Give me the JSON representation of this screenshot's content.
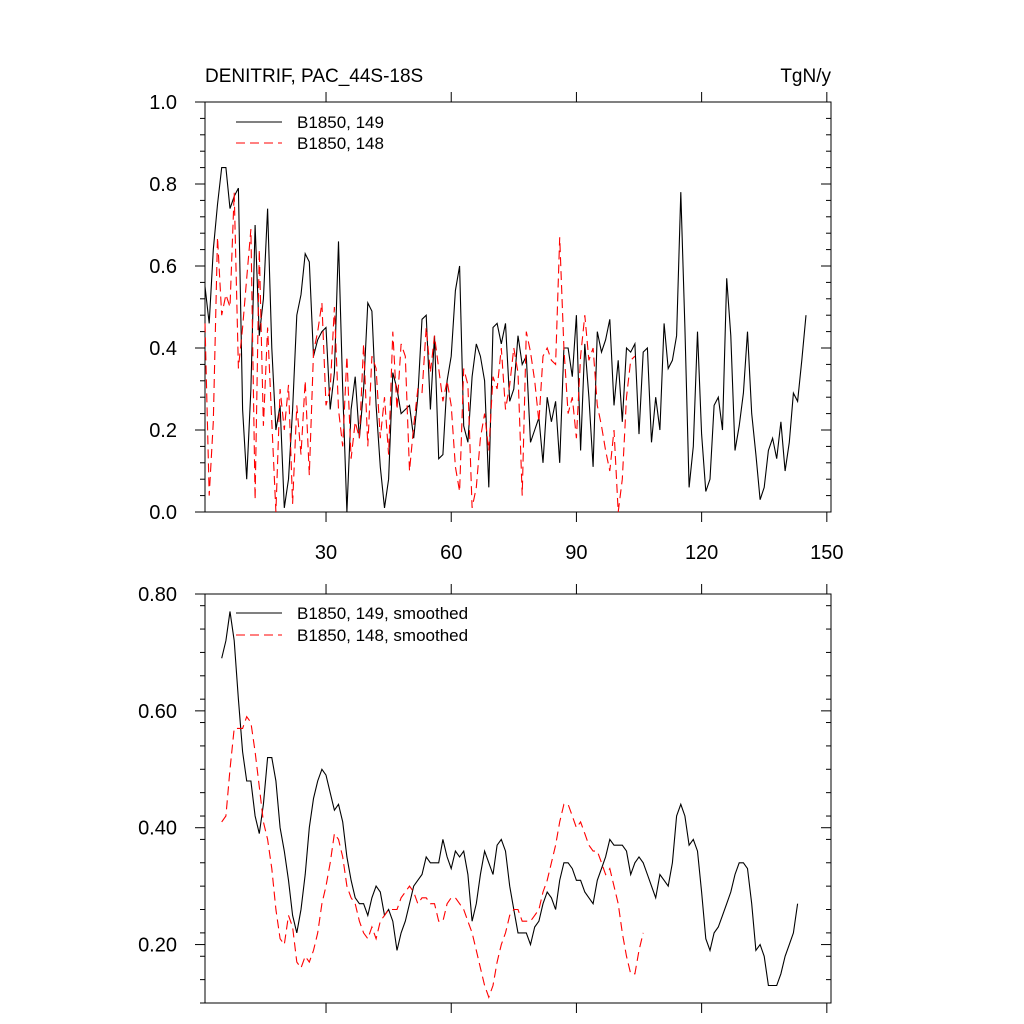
{
  "chart_data": [
    {
      "type": "line",
      "title": "DENITRIF, PAC_44S-18S",
      "units": "TgN/y",
      "xlim": [
        1,
        151
      ],
      "ylim": [
        0,
        1.0
      ],
      "xticks": [
        30,
        60,
        90,
        120,
        150
      ],
      "xtick_labels": [
        "30",
        "60",
        "90",
        "120",
        "150"
      ],
      "yticks": [
        0,
        0.2,
        0.4,
        0.6,
        0.8,
        1.0
      ],
      "ytick_labels": [
        "0.0",
        "0.2",
        "0.4",
        "0.6",
        "0.8",
        "1.0"
      ],
      "grid": false,
      "legend_position": "top-left",
      "series": [
        {
          "name": "B1850, 149",
          "color": "#000000",
          "dash": "solid",
          "x_start": 1,
          "values": [
            0.55,
            0.46,
            0.64,
            0.75,
            0.84,
            0.84,
            0.74,
            0.77,
            0.79,
            0.25,
            0.08,
            0.3,
            0.7,
            0.43,
            0.52,
            0.74,
            0.4,
            0.2,
            0.26,
            0.01,
            0.08,
            0.25,
            0.48,
            0.53,
            0.63,
            0.61,
            0.38,
            0.42,
            0.44,
            0.45,
            0.25,
            0.34,
            0.66,
            0.3,
            0.0,
            0.25,
            0.33,
            0.18,
            0.3,
            0.51,
            0.49,
            0.26,
            0.11,
            0.01,
            0.08,
            0.34,
            0.3,
            0.24,
            0.25,
            0.26,
            0.18,
            0.28,
            0.47,
            0.48,
            0.25,
            0.43,
            0.13,
            0.14,
            0.32,
            0.38,
            0.54,
            0.6,
            0.21,
            0.17,
            0.33,
            0.41,
            0.38,
            0.32,
            0.06,
            0.45,
            0.46,
            0.41,
            0.46,
            0.27,
            0.3,
            0.43,
            0.36,
            0.38,
            0.17,
            0.2,
            0.23,
            0.12,
            0.28,
            0.22,
            0.27,
            0.12,
            0.4,
            0.4,
            0.33,
            0.48,
            0.15,
            0.41,
            0.28,
            0.11,
            0.44,
            0.39,
            0.42,
            0.47,
            0.26,
            0.37,
            0.22,
            0.4,
            0.39,
            0.41,
            0.19,
            0.39,
            0.4,
            0.17,
            0.28,
            0.2,
            0.46,
            0.35,
            0.37,
            0.43,
            0.78,
            0.45,
            0.06,
            0.16,
            0.44,
            0.19,
            0.05,
            0.08,
            0.26,
            0.28,
            0.2,
            0.57,
            0.43,
            0.15,
            0.21,
            0.29,
            0.44,
            0.24,
            0.14,
            0.03,
            0.06,
            0.15,
            0.18,
            0.13,
            0.22,
            0.1,
            0.17,
            0.29,
            0.27,
            0.37,
            0.48
          ]
        },
        {
          "name": "B1850, 148",
          "color": "#ff0000",
          "dash": "dashed",
          "x_start": 1,
          "values": [
            0.46,
            0.04,
            0.22,
            0.67,
            0.48,
            0.53,
            0.5,
            0.78,
            0.35,
            0.45,
            0.57,
            0.69,
            0.03,
            0.64,
            0.21,
            0.45,
            0.22,
            0.0,
            0.3,
            0.2,
            0.31,
            0.02,
            0.26,
            0.14,
            0.32,
            0.09,
            0.39,
            0.44,
            0.51,
            0.26,
            0.3,
            0.5,
            0.25,
            0.16,
            0.38,
            0.13,
            0.22,
            0.18,
            0.41,
            0.16,
            0.38,
            0.35,
            0.18,
            0.28,
            0.14,
            0.44,
            0.25,
            0.41,
            0.38,
            0.1,
            0.21,
            0.3,
            0.29,
            0.45,
            0.34,
            0.43,
            0.35,
            0.27,
            0.32,
            0.26,
            0.11,
            0.05,
            0.35,
            0.31,
            0.01,
            0.06,
            0.18,
            0.24,
            0.15,
            0.33,
            0.3,
            0.4,
            0.25,
            0.31,
            0.4,
            0.34,
            0.04,
            0.44,
            0.39,
            0.32,
            0.22,
            0.38,
            0.4,
            0.37,
            0.36,
            0.67,
            0.4,
            0.24,
            0.28,
            0.18,
            0.38,
            0.48,
            0.37,
            0.4,
            0.26,
            0.21,
            0.15,
            0.1,
            0.2,
            0.0,
            0.08,
            0.28,
            0.37,
            0.38
          ]
        }
      ]
    },
    {
      "type": "line",
      "xlim": [
        1,
        151
      ],
      "ylim": [
        0.1,
        0.8
      ],
      "xticks": [
        30,
        60,
        90,
        120,
        150
      ],
      "yticks": [
        0.2,
        0.4,
        0.6,
        0.8
      ],
      "ytick_labels": [
        "0.20",
        "0.40",
        "0.60",
        "0.80"
      ],
      "grid": false,
      "legend_position": "top-left",
      "series": [
        {
          "name": "B1850, 149, smoothed",
          "color": "#000000",
          "dash": "solid",
          "x_start": 5,
          "values": [
            0.69,
            0.72,
            0.77,
            0.72,
            0.62,
            0.53,
            0.48,
            0.48,
            0.42,
            0.39,
            0.44,
            0.52,
            0.52,
            0.48,
            0.4,
            0.36,
            0.31,
            0.25,
            0.22,
            0.26,
            0.32,
            0.4,
            0.45,
            0.48,
            0.5,
            0.49,
            0.46,
            0.43,
            0.44,
            0.41,
            0.35,
            0.31,
            0.28,
            0.27,
            0.27,
            0.25,
            0.28,
            0.3,
            0.29,
            0.25,
            0.26,
            0.24,
            0.19,
            0.22,
            0.24,
            0.27,
            0.3,
            0.31,
            0.32,
            0.35,
            0.34,
            0.34,
            0.34,
            0.38,
            0.35,
            0.33,
            0.36,
            0.35,
            0.36,
            0.32,
            0.24,
            0.27,
            0.32,
            0.36,
            0.34,
            0.32,
            0.37,
            0.38,
            0.36,
            0.3,
            0.26,
            0.22,
            0.22,
            0.22,
            0.2,
            0.23,
            0.24,
            0.27,
            0.29,
            0.28,
            0.26,
            0.31,
            0.34,
            0.34,
            0.33,
            0.31,
            0.31,
            0.29,
            0.28,
            0.27,
            0.31,
            0.33,
            0.35,
            0.38,
            0.37,
            0.37,
            0.37,
            0.36,
            0.32,
            0.34,
            0.35,
            0.34,
            0.32,
            0.3,
            0.28,
            0.32,
            0.31,
            0.3,
            0.34,
            0.42,
            0.44,
            0.42,
            0.37,
            0.38,
            0.36,
            0.29,
            0.21,
            0.19,
            0.22,
            0.23,
            0.25,
            0.27,
            0.29,
            0.32,
            0.34,
            0.34,
            0.33,
            0.27,
            0.19,
            0.2,
            0.18,
            0.13,
            0.13,
            0.13,
            0.15,
            0.18,
            0.2,
            0.22,
            0.27
          ]
        },
        {
          "name": "B1850, 148, smoothed",
          "color": "#ff0000",
          "dash": "dashed",
          "x_start": 5,
          "values": [
            0.41,
            0.42,
            0.5,
            0.57,
            0.57,
            0.57,
            0.59,
            0.58,
            0.53,
            0.47,
            0.41,
            0.38,
            0.33,
            0.26,
            0.21,
            0.2,
            0.25,
            0.23,
            0.17,
            0.16,
            0.18,
            0.17,
            0.19,
            0.22,
            0.27,
            0.3,
            0.34,
            0.39,
            0.38,
            0.35,
            0.3,
            0.28,
            0.27,
            0.24,
            0.22,
            0.21,
            0.23,
            0.21,
            0.24,
            0.25,
            0.26,
            0.26,
            0.26,
            0.28,
            0.29,
            0.3,
            0.29,
            0.27,
            0.28,
            0.28,
            0.27,
            0.27,
            0.24,
            0.24,
            0.27,
            0.28,
            0.28,
            0.27,
            0.26,
            0.24,
            0.22,
            0.19,
            0.16,
            0.13,
            0.11,
            0.13,
            0.17,
            0.2,
            0.22,
            0.25,
            0.26,
            0.26,
            0.24,
            0.24,
            0.24,
            0.25,
            0.26,
            0.29,
            0.31,
            0.34,
            0.37,
            0.41,
            0.44,
            0.44,
            0.42,
            0.4,
            0.41,
            0.39,
            0.37,
            0.36,
            0.36,
            0.34,
            0.32,
            0.33,
            0.3,
            0.27,
            0.22,
            0.18,
            0.15,
            0.15,
            0.19,
            0.22
          ]
        }
      ]
    }
  ]
}
